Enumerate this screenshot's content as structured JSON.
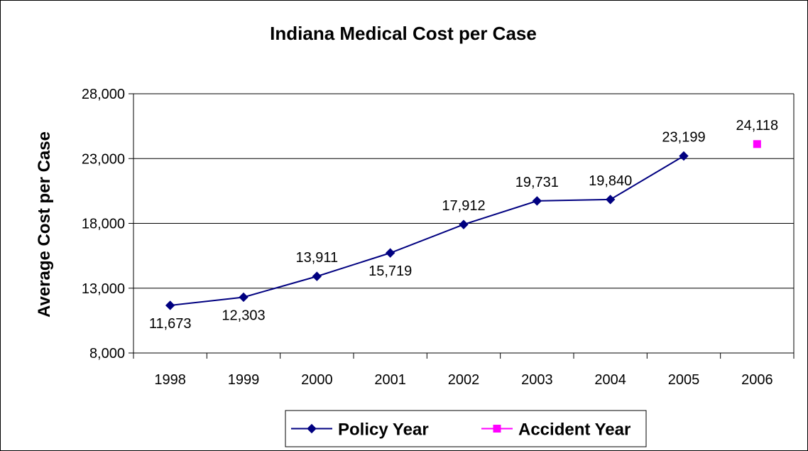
{
  "chart_data": {
    "type": "line",
    "title": "Indiana Medical Cost per Case",
    "xlabel": "",
    "ylabel": "Average Cost per Case",
    "categories": [
      "1998",
      "1999",
      "2000",
      "2001",
      "2002",
      "2003",
      "2004",
      "2005",
      "2006"
    ],
    "ylim": [
      8000,
      28000
    ],
    "yticks": [
      8000,
      13000,
      18000,
      23000,
      28000
    ],
    "ytick_labels": [
      "8,000",
      "13,000",
      "18,000",
      "23,000",
      "28,000"
    ],
    "grid": true,
    "legend_position": "bottom",
    "series": [
      {
        "name": "Policy Year",
        "color": "#000080",
        "marker": "diamond",
        "values": [
          11673,
          12303,
          13911,
          15719,
          17912,
          19731,
          19840,
          23199,
          null
        ],
        "labels": [
          "11,673",
          "12,303",
          "13,911",
          "15,719",
          "17,912",
          "19,731",
          "19,840",
          "23,199",
          ""
        ]
      },
      {
        "name": "Accident Year",
        "color": "#FF00FF",
        "marker": "square",
        "values": [
          null,
          null,
          null,
          null,
          null,
          null,
          null,
          null,
          24118
        ],
        "labels": [
          "",
          "",
          "",
          "",
          "",
          "",
          "",
          "",
          "24,118"
        ]
      }
    ]
  }
}
